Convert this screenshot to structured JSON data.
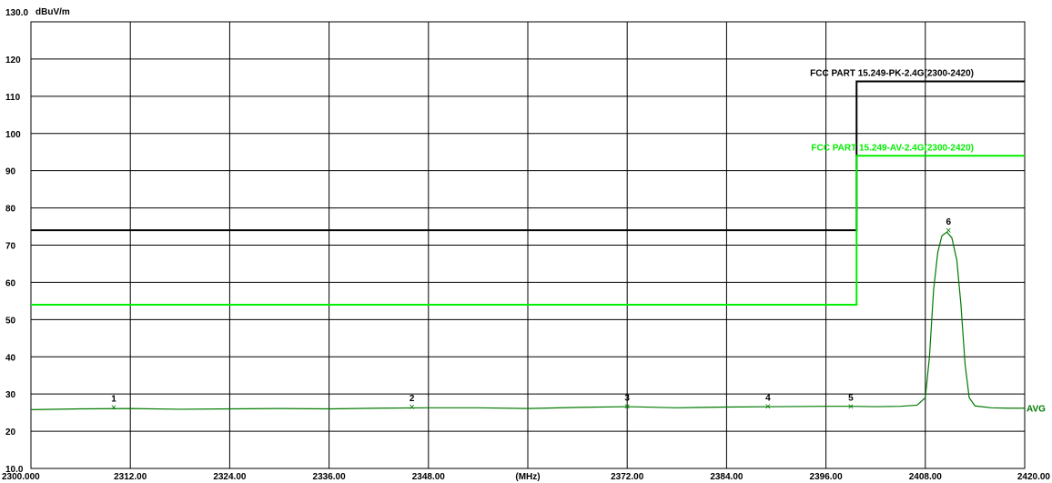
{
  "chart_data": {
    "type": "line",
    "y_unit": "dBuV/m",
    "x_unit": "(MHz)",
    "xlim": [
      2300.0,
      2420.0
    ],
    "ylim": [
      10.0,
      130.0
    ],
    "x_ticks": [
      2300,
      2312,
      2324,
      2336,
      2348,
      2360,
      2372,
      2384,
      2396,
      2408,
      2420
    ],
    "x_tick_labels": [
      "2300.000",
      "2312.00",
      "2324.00",
      "2336.00",
      "2348.00",
      "",
      "2372.00",
      "2384.00",
      "2396.00",
      "2408.00",
      "2420.00"
    ],
    "y_ticks": [
      10,
      20,
      30,
      40,
      50,
      60,
      70,
      80,
      90,
      100,
      110,
      120,
      130
    ],
    "y_tick_labels": [
      "10.0",
      "20",
      "30",
      "40",
      "50",
      "60",
      "70",
      "80",
      "90",
      "100",
      "110",
      "120",
      "130.0"
    ],
    "grid": true,
    "limit_lines": [
      {
        "label": "FCC PART 15.249-PK-2.4G(2300-2420)",
        "color": "#000000",
        "points": [
          [
            2300.0,
            74.0
          ],
          [
            2399.7,
            74.0
          ],
          [
            2399.7,
            114.0
          ],
          [
            2420.0,
            114.0
          ]
        ]
      },
      {
        "label": "FCC PART 15.249-AV-2.4G(2300-2420)",
        "color": "#00ee00",
        "points": [
          [
            2300.0,
            54.0
          ],
          [
            2399.7,
            54.0
          ],
          [
            2399.7,
            94.0
          ],
          [
            2420.0,
            94.0
          ]
        ]
      }
    ],
    "series": [
      {
        "name": "AVG",
        "color": "#007a00",
        "points": [
          [
            2300.0,
            25.8
          ],
          [
            2306.0,
            26.0
          ],
          [
            2312.0,
            26.1
          ],
          [
            2318.0,
            25.9
          ],
          [
            2324.0,
            26.0
          ],
          [
            2330.0,
            26.1
          ],
          [
            2336.0,
            26.0
          ],
          [
            2342.0,
            26.2
          ],
          [
            2348.0,
            26.3
          ],
          [
            2354.0,
            26.3
          ],
          [
            2360.0,
            26.1
          ],
          [
            2366.0,
            26.4
          ],
          [
            2372.0,
            26.6
          ],
          [
            2378.0,
            26.3
          ],
          [
            2384.0,
            26.5
          ],
          [
            2390.0,
            26.6
          ],
          [
            2396.0,
            26.7
          ],
          [
            2399.0,
            26.7
          ],
          [
            2402.0,
            26.6
          ],
          [
            2405.0,
            26.7
          ],
          [
            2407.0,
            27.0
          ],
          [
            2408.0,
            29.0
          ],
          [
            2408.5,
            40.0
          ],
          [
            2409.0,
            58.0
          ],
          [
            2409.5,
            68.0
          ],
          [
            2410.0,
            72.5
          ],
          [
            2410.6,
            73.5
          ],
          [
            2411.2,
            72.0
          ],
          [
            2411.8,
            66.0
          ],
          [
            2412.3,
            54.0
          ],
          [
            2412.8,
            38.0
          ],
          [
            2413.3,
            29.0
          ],
          [
            2414.0,
            26.8
          ],
          [
            2416.0,
            26.3
          ],
          [
            2418.0,
            26.2
          ],
          [
            2420.0,
            26.2
          ]
        ]
      }
    ],
    "markers": [
      {
        "label": "1",
        "x": 2310.0,
        "y": 26.5
      },
      {
        "label": "2",
        "x": 2346.0,
        "y": 26.6
      },
      {
        "label": "3",
        "x": 2372.0,
        "y": 26.8
      },
      {
        "label": "4",
        "x": 2389.0,
        "y": 26.8
      },
      {
        "label": "5",
        "x": 2399.0,
        "y": 26.7
      },
      {
        "label": "6",
        "x": 2410.8,
        "y": 74.0
      }
    ]
  }
}
